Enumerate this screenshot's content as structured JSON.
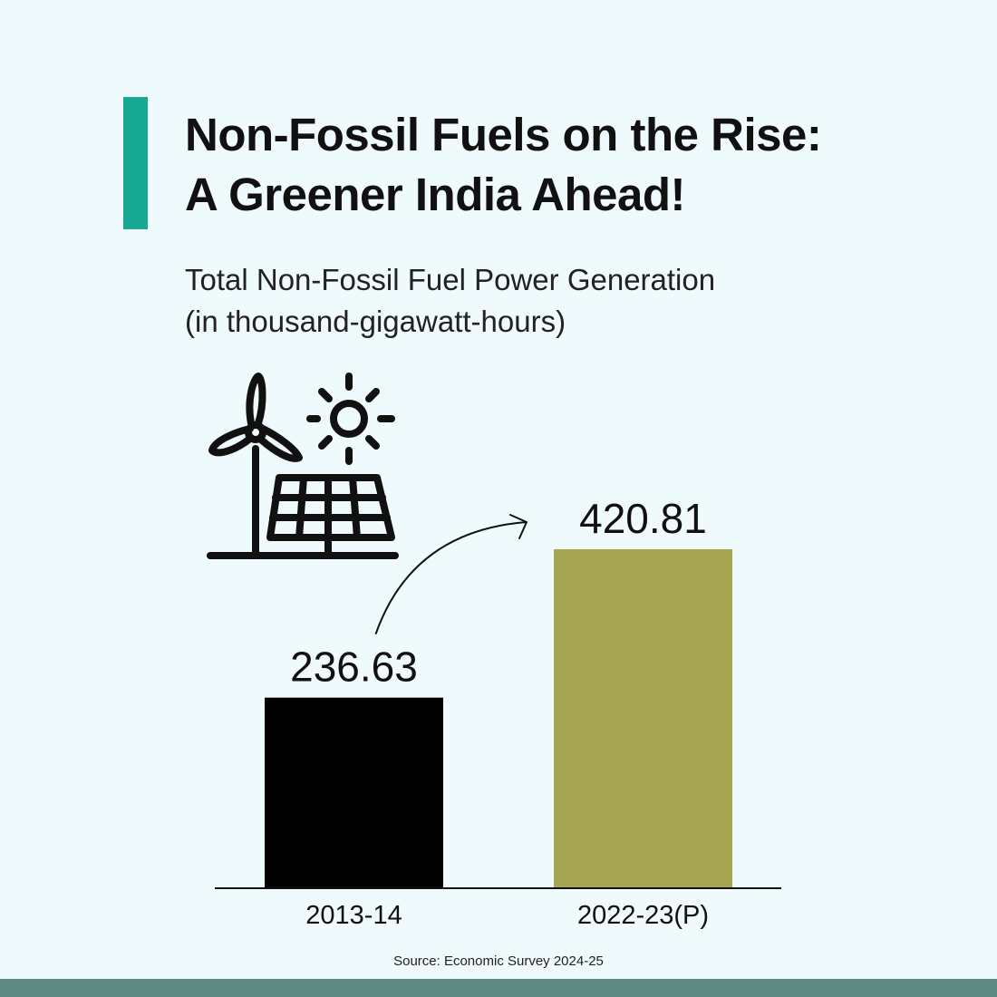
{
  "header": {
    "title_line1": "Non-Fossil Fuels on the Rise:",
    "title_line2": "A Greener India Ahead!"
  },
  "colors": {
    "accent": "#17a993",
    "background": "#eefafb",
    "bar_2013": "#000000",
    "bar_2022": "#a6a551",
    "footer": "#5f8c82"
  },
  "icons": [
    "wind-turbine-icon",
    "sun-icon",
    "solar-panel-icon",
    "growth-arrow-icon"
  ],
  "chart_data": {
    "type": "bar",
    "title": "Non-Fossil Fuels on the Rise: A Greener India Ahead!",
    "subtitle_line1": "Total Non-Fossil Fuel Power Generation",
    "subtitle_line2": "(in thousand-gigawatt-hours)",
    "categories": [
      "2013-14",
      "2022-23(P)"
    ],
    "values": [
      236.63,
      420.81
    ],
    "value_labels": [
      "236.63",
      "420.81"
    ],
    "bar_colors": [
      "#000000",
      "#a6a551"
    ],
    "ylim": [
      0,
      420.81
    ],
    "xlabel": "",
    "ylabel": "",
    "grid": false
  },
  "footer": {
    "source": "Source: Economic Survey 2024-25"
  }
}
